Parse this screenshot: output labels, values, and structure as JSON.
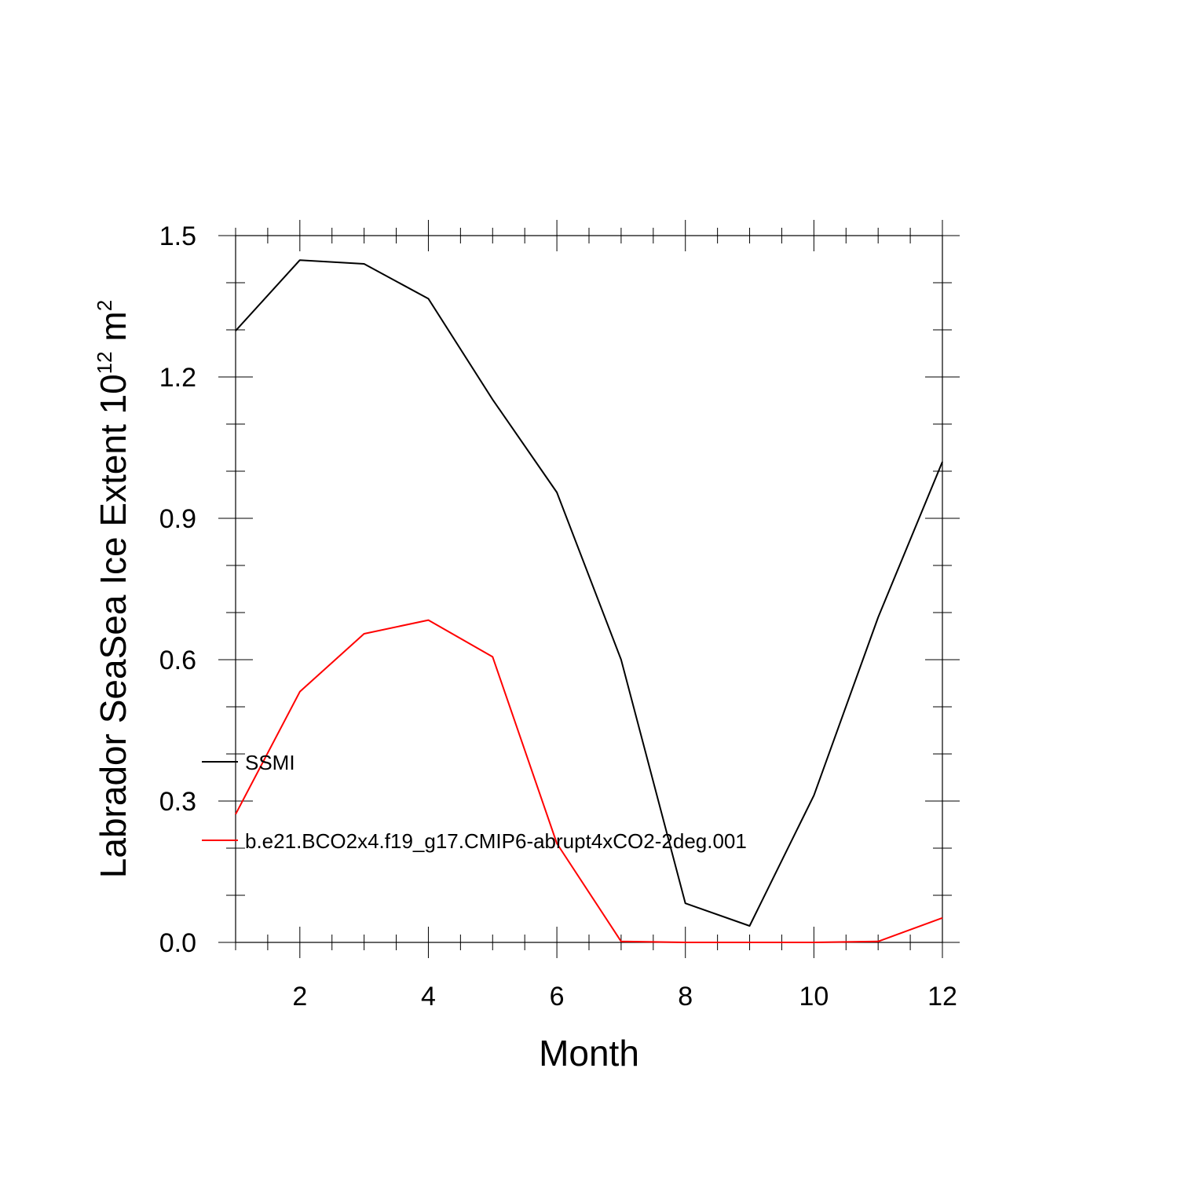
{
  "chart_data": {
    "type": "line",
    "title": "",
    "xlabel": "Month",
    "ylabel_main": "Labrador SeaSea Ice Extent 10",
    "ylabel_sup": "12",
    "ylabel_unit": " m",
    "ylabel_unit_sup": "2",
    "xlim": [
      1,
      12
    ],
    "ylim": [
      0,
      1.5
    ],
    "x_major_ticks": [
      2,
      4,
      6,
      8,
      10,
      12
    ],
    "x_minor_step": 0.5,
    "y_major_ticks": [
      "0.0",
      "0.3",
      "0.6",
      "0.9",
      "1.2",
      "1.5"
    ],
    "y_minor_step": 0.1,
    "grid": false,
    "legend_position": "left, inside plot",
    "x": [
      1,
      2,
      3,
      4,
      5,
      6,
      7,
      8,
      9,
      10,
      11,
      12
    ],
    "series": [
      {
        "name": "SSMI",
        "color": "#000000",
        "values": [
          1.298,
          1.448,
          1.44,
          1.366,
          1.152,
          0.955,
          0.6,
          0.083,
          0.035,
          0.312,
          0.69,
          1.02
        ]
      },
      {
        "name": "b.e21.BCO2x4.f19_g17.CMIP6-abrupt4xCO2-2deg.001",
        "color": "#ff0000",
        "values": [
          0.272,
          0.532,
          0.655,
          0.684,
          0.606,
          0.21,
          0.002,
          0.0,
          0.0,
          0.0,
          0.002,
          0.052
        ]
      }
    ]
  }
}
